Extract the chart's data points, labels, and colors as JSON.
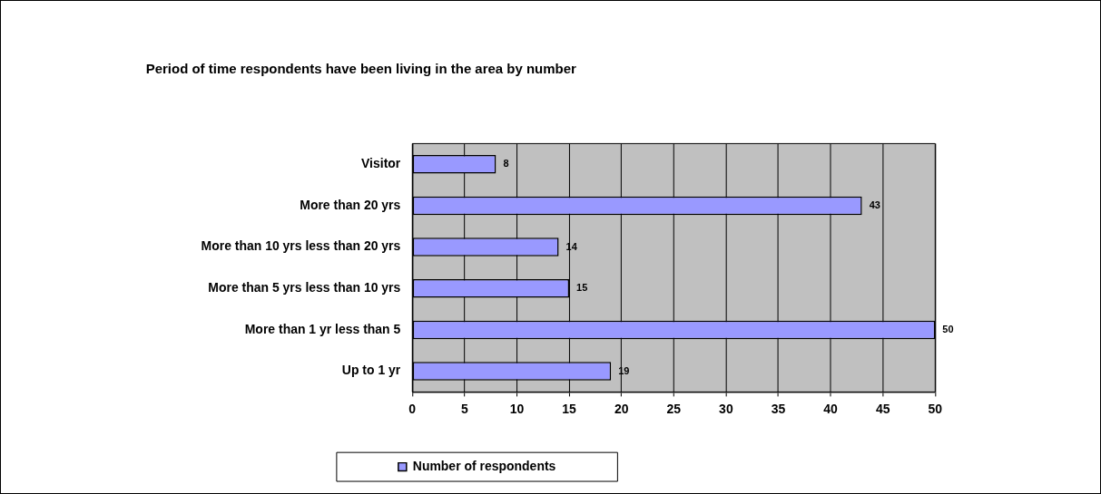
{
  "chart_data": {
    "type": "bar",
    "orientation": "horizontal",
    "title": "Period of time respondents have been living in the area by number",
    "categories": [
      "Visitor",
      "More than 20 yrs",
      "More than 10 yrs less than 20 yrs",
      "More than 5 yrs less than 10 yrs",
      "More than 1 yr less than 5",
      "Up to 1 yr"
    ],
    "series": [
      {
        "name": "Number of respondents",
        "color": "#9999ff",
        "values": [
          8,
          43,
          14,
          15,
          50,
          19
        ]
      }
    ],
    "xlim": [
      0,
      50
    ],
    "xticks": [
      0,
      5,
      10,
      15,
      20,
      25,
      30,
      35,
      40,
      45,
      50
    ],
    "grid": "x",
    "legend": "bottom",
    "data_labels": true
  }
}
